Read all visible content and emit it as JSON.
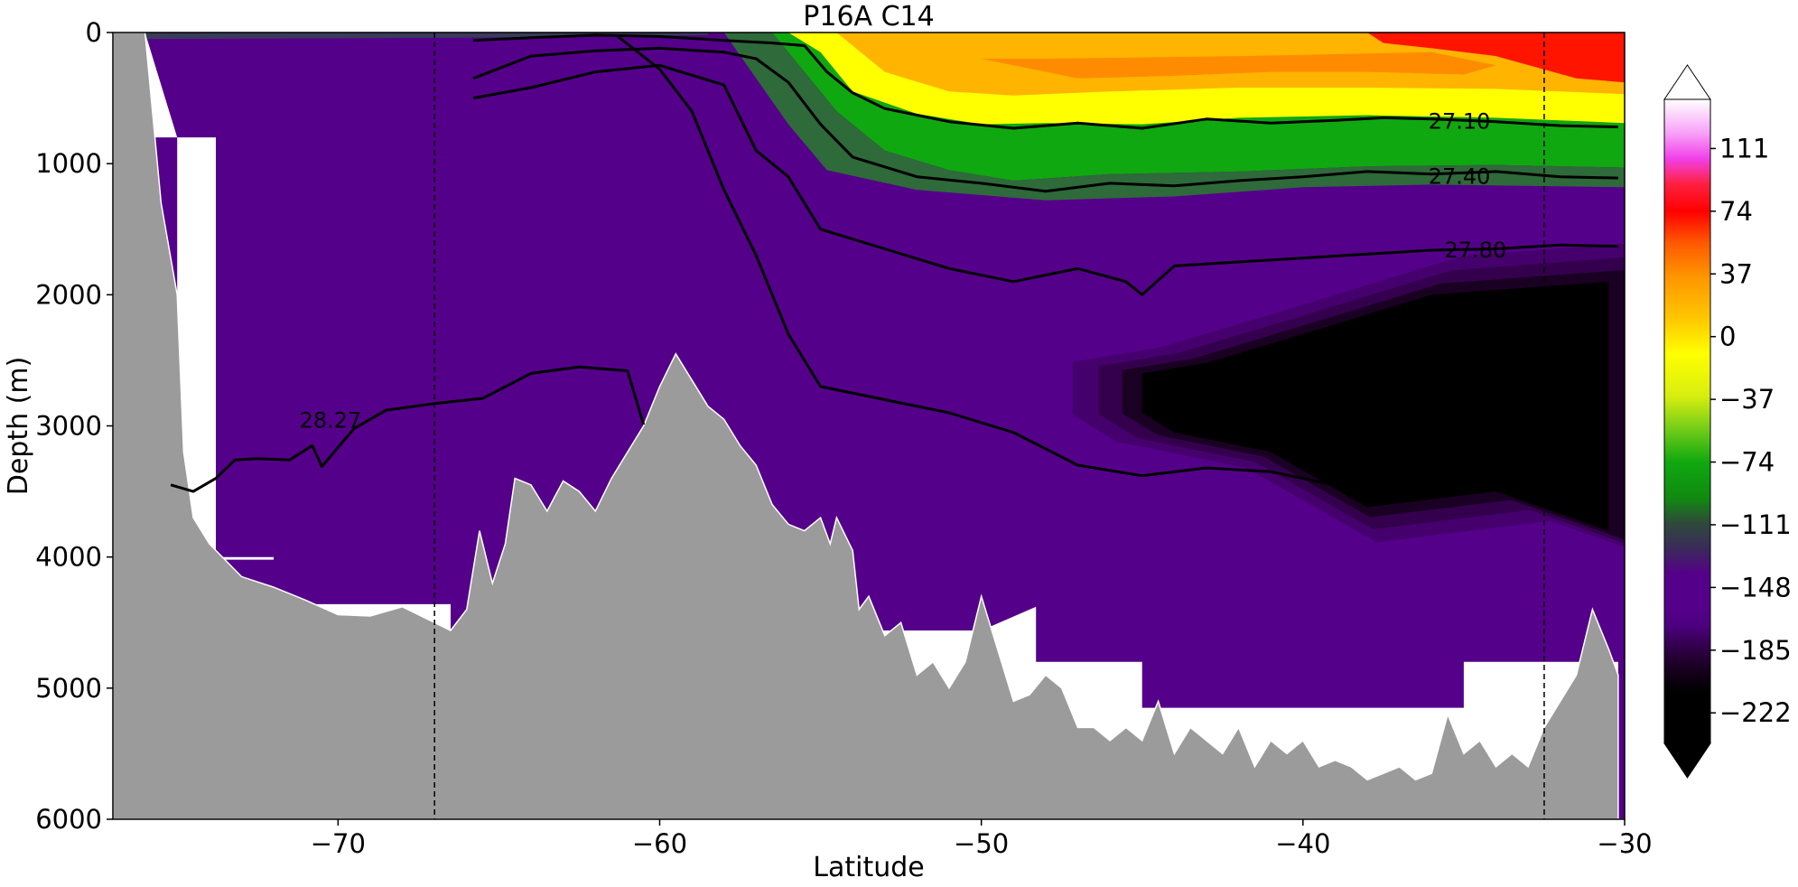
{
  "chart_data": {
    "type": "contourf",
    "title": "P16A C14",
    "xlabel": "Latitude",
    "ylabel": "Depth (m)",
    "xlim": [
      -77,
      -30
    ],
    "ylim": [
      6000,
      0
    ],
    "xticks": [
      -70,
      -60,
      -50,
      -40,
      -30
    ],
    "yticks": [
      0,
      1000,
      2000,
      3000,
      4000,
      5000,
      6000
    ],
    "reference_lines_x": [
      -67.0,
      -32.5
    ],
    "colorbar": {
      "ticks": [
        111,
        74,
        37,
        0,
        -37,
        -74,
        -111,
        -148,
        -185,
        -222
      ],
      "range": [
        -240,
        140
      ],
      "extend": "both",
      "colors": [
        {
          "value": -240,
          "color": "#000000"
        },
        {
          "value": -210,
          "color": "#000000"
        },
        {
          "value": -195,
          "color": "#1a0022"
        },
        {
          "value": -182,
          "color": "#34004e"
        },
        {
          "value": -170,
          "color": "#4d0080"
        },
        {
          "value": -160,
          "color": "#55008a"
        },
        {
          "value": -140,
          "color": "#55008a"
        },
        {
          "value": -125,
          "color": "#3a2a5a"
        },
        {
          "value": -110,
          "color": "#2e4a3a"
        },
        {
          "value": -95,
          "color": "#118a10"
        },
        {
          "value": -74,
          "color": "#10a810"
        },
        {
          "value": -55,
          "color": "#70cc18"
        },
        {
          "value": -35,
          "color": "#d8ee10"
        },
        {
          "value": -10,
          "color": "#ffff00"
        },
        {
          "value": 10,
          "color": "#ffc800"
        },
        {
          "value": 35,
          "color": "#ff9600"
        },
        {
          "value": 55,
          "color": "#ff5a00"
        },
        {
          "value": 74,
          "color": "#ff0000"
        },
        {
          "value": 90,
          "color": "#ff2040"
        },
        {
          "value": 105,
          "color": "#f040e8"
        },
        {
          "value": 120,
          "color": "#f8a0f8"
        },
        {
          "value": 140,
          "color": "#ffffff"
        }
      ]
    },
    "contours": [
      {
        "level": "27.10",
        "label_pos": [
          -36.1,
          680
        ],
        "points": [
          [
            -65.8,
            60
          ],
          [
            -64,
            40
          ],
          [
            -62,
            20
          ],
          [
            -60,
            30
          ],
          [
            -58,
            60
          ],
          [
            -56.5,
            80
          ],
          [
            -55.5,
            100
          ],
          [
            -54.8,
            300
          ],
          [
            -54,
            460
          ],
          [
            -53,
            580
          ],
          [
            -51,
            680
          ],
          [
            -49,
            730
          ],
          [
            -47,
            690
          ],
          [
            -45,
            730
          ],
          [
            -43,
            660
          ],
          [
            -41,
            690
          ],
          [
            -39,
            670
          ],
          [
            -37.5,
            650
          ],
          [
            -36,
            660
          ],
          [
            -34,
            680
          ],
          [
            -32,
            710
          ],
          [
            -30.2,
            720
          ]
        ]
      },
      {
        "level": "27.40",
        "label_pos": [
          -36.1,
          1100
        ],
        "points": [
          [
            -65.8,
            350
          ],
          [
            -64,
            180
          ],
          [
            -62,
            140
          ],
          [
            -60,
            120
          ],
          [
            -58,
            150
          ],
          [
            -57,
            200
          ],
          [
            -56,
            380
          ],
          [
            -55,
            700
          ],
          [
            -54,
            950
          ],
          [
            -52,
            1100
          ],
          [
            -50,
            1150
          ],
          [
            -48,
            1210
          ],
          [
            -46,
            1150
          ],
          [
            -44,
            1170
          ],
          [
            -42,
            1130
          ],
          [
            -40,
            1100
          ],
          [
            -38,
            1060
          ],
          [
            -36,
            1080
          ],
          [
            -34,
            1060
          ],
          [
            -32,
            1100
          ],
          [
            -30.2,
            1110
          ]
        ]
      },
      {
        "level": "27.80",
        "label_pos": [
          -35.6,
          1660
        ],
        "points": [
          [
            -65.8,
            500
          ],
          [
            -64,
            420
          ],
          [
            -62,
            300
          ],
          [
            -60,
            250
          ],
          [
            -58,
            400
          ],
          [
            -57,
            900
          ],
          [
            -56,
            1100
          ],
          [
            -55,
            1500
          ],
          [
            -53,
            1650
          ],
          [
            -51,
            1800
          ],
          [
            -49,
            1900
          ],
          [
            -47,
            1800
          ],
          [
            -45.5,
            1900
          ],
          [
            -45,
            2000
          ],
          [
            -44,
            1780
          ],
          [
            -42,
            1750
          ],
          [
            -40,
            1720
          ],
          [
            -38,
            1690
          ],
          [
            -36,
            1660
          ],
          [
            -34,
            1650
          ],
          [
            -32,
            1620
          ],
          [
            -30.2,
            1630
          ]
        ]
      },
      {
        "level": "",
        "label_pos": null,
        "points": [
          [
            -61.3,
            30
          ],
          [
            -60,
            280
          ],
          [
            -59,
            600
          ],
          [
            -58,
            1200
          ],
          [
            -57,
            1700
          ],
          [
            -56,
            2300
          ],
          [
            -55,
            2700
          ],
          [
            -53,
            2800
          ],
          [
            -51,
            2900
          ],
          [
            -49,
            3050
          ],
          [
            -47,
            3300
          ],
          [
            -45,
            3380
          ],
          [
            -43,
            3320
          ],
          [
            -41,
            3350
          ],
          [
            -39,
            3450
          ],
          [
            -38.5,
            3550
          ]
        ]
      },
      {
        "level": "28.27",
        "label_pos": [
          -71.2,
          2960
        ],
        "points": [
          [
            -75.2,
            3450
          ],
          [
            -74.5,
            3500
          ],
          [
            -73.8,
            3400
          ],
          [
            -73.2,
            3260
          ],
          [
            -72.5,
            3250
          ],
          [
            -71.5,
            3260
          ],
          [
            -70.8,
            3150
          ],
          [
            -70.5,
            3310
          ],
          [
            -69.5,
            3020
          ],
          [
            -68.5,
            2880
          ],
          [
            -67,
            2830
          ],
          [
            -65.5,
            2790
          ],
          [
            -64,
            2600
          ],
          [
            -62.5,
            2550
          ],
          [
            -61,
            2580
          ],
          [
            -60.5,
            2990
          ]
        ]
      }
    ],
    "regions": {
      "white_gap_shelf": [
        [
          -75,
          800
        ],
        [
          -73.8,
          800
        ],
        [
          -73.8,
          4020
        ],
        [
          -72,
          4020
        ],
        [
          -72,
          4000
        ],
        [
          -75,
          4000
        ]
      ],
      "deep_black_core": [
        [
          -45,
          2600
        ],
        [
          -43,
          2520
        ],
        [
          -40,
          2300
        ],
        [
          -36,
          2000
        ],
        [
          -30.5,
          1900
        ],
        [
          -30.5,
          3800
        ],
        [
          -34,
          3500
        ],
        [
          -38,
          3620
        ],
        [
          -41,
          3200
        ],
        [
          -44,
          3050
        ],
        [
          -45,
          2900
        ]
      ]
    },
    "bathymetry_depths": [
      [
        -77,
        0
      ],
      [
        -76,
        0
      ],
      [
        -75.5,
        1300
      ],
      [
        -75,
        2000
      ],
      [
        -74.8,
        3200
      ],
      [
        -74.5,
        3700
      ],
      [
        -74,
        3900
      ],
      [
        -73,
        4150
      ],
      [
        -72,
        4230
      ],
      [
        -71,
        4330
      ],
      [
        -70,
        4440
      ],
      [
        -69,
        4450
      ],
      [
        -68,
        4380
      ],
      [
        -67,
        4500
      ],
      [
        -66.5,
        4560
      ],
      [
        -66,
        4400
      ],
      [
        -65.6,
        3800
      ],
      [
        -65.2,
        4200
      ],
      [
        -64.8,
        3900
      ],
      [
        -64.5,
        3400
      ],
      [
        -64,
        3450
      ],
      [
        -63.5,
        3650
      ],
      [
        -63,
        3420
      ],
      [
        -62.5,
        3500
      ],
      [
        -62,
        3650
      ],
      [
        -61.5,
        3400
      ],
      [
        -61,
        3200
      ],
      [
        -60.5,
        3000
      ],
      [
        -60,
        2700
      ],
      [
        -59.5,
        2450
      ],
      [
        -59,
        2650
      ],
      [
        -58.5,
        2850
      ],
      [
        -58,
        2950
      ],
      [
        -57.5,
        3150
      ],
      [
        -57,
        3300
      ],
      [
        -56.5,
        3600
      ],
      [
        -56,
        3750
      ],
      [
        -55.5,
        3800
      ],
      [
        -55,
        3700
      ],
      [
        -54.7,
        3900
      ],
      [
        -54.5,
        3700
      ],
      [
        -54,
        3950
      ],
      [
        -53.8,
        4400
      ],
      [
        -53.5,
        4300
      ],
      [
        -53,
        4600
      ],
      [
        -52.5,
        4500
      ],
      [
        -52,
        4900
      ],
      [
        -51.5,
        4800
      ],
      [
        -51,
        5000
      ],
      [
        -50.5,
        4800
      ],
      [
        -50,
        4300
      ],
      [
        -49.5,
        4700
      ],
      [
        -49,
        5100
      ],
      [
        -48.5,
        5050
      ],
      [
        -48,
        4900
      ],
      [
        -47.5,
        5000
      ],
      [
        -47,
        5300
      ],
      [
        -46.5,
        5300
      ],
      [
        -46,
        5400
      ],
      [
        -45.5,
        5300
      ],
      [
        -45,
        5400
      ],
      [
        -44.5,
        5100
      ],
      [
        -44,
        5500
      ],
      [
        -43.5,
        5300
      ],
      [
        -43,
        5400
      ],
      [
        -42.5,
        5500
      ],
      [
        -42,
        5300
      ],
      [
        -41.5,
        5600
      ],
      [
        -41,
        5400
      ],
      [
        -40.5,
        5500
      ],
      [
        -40,
        5400
      ],
      [
        -39.5,
        5600
      ],
      [
        -39,
        5550
      ],
      [
        -38.5,
        5600
      ],
      [
        -38,
        5700
      ],
      [
        -37.5,
        5650
      ],
      [
        -37,
        5600
      ],
      [
        -36.5,
        5700
      ],
      [
        -36,
        5650
      ],
      [
        -35.5,
        5200
      ],
      [
        -35,
        5500
      ],
      [
        -34.5,
        5400
      ],
      [
        -34,
        5600
      ],
      [
        -33.5,
        5500
      ],
      [
        -33,
        5600
      ],
      [
        -32.5,
        5300
      ],
      [
        -32,
        5100
      ],
      [
        -31.5,
        4900
      ],
      [
        -31,
        4400
      ],
      [
        -30.5,
        4700
      ],
      [
        -30.2,
        4900
      ],
      [
        -30.2,
        6000
      ]
    ]
  }
}
